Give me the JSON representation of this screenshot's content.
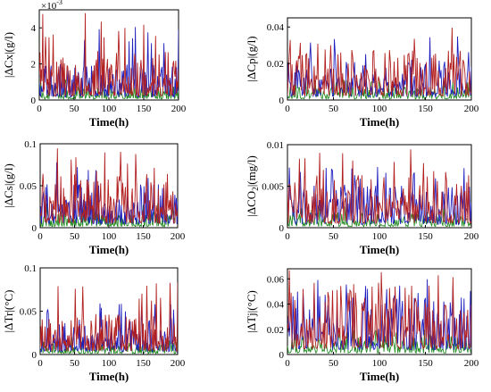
{
  "colors": {
    "series_a": "#1f1fbf",
    "series_b": "#b22020",
    "series_c": "#228b22",
    "axes": "#000000"
  },
  "chart_data": [
    {
      "type": "line",
      "xlabel": "Time(h)",
      "ylabel": "|ΔCx|(g/l)",
      "exponent_label": "×10",
      "exponent_power": "-3",
      "xlim": [
        0,
        200
      ],
      "ylim": [
        0,
        5
      ],
      "xticks": [
        "0",
        "50",
        "100",
        "150",
        "200"
      ],
      "yticks": [
        "0",
        "2",
        "4"
      ],
      "ytick_values": [
        0,
        2,
        4
      ],
      "series_count": 3,
      "points": 200,
      "levels": [
        1.1,
        1.5,
        0.4
      ],
      "peaks": [
        4.1,
        4.9,
        1.2
      ]
    },
    {
      "type": "line",
      "xlabel": "Time(h)",
      "ylabel": "|ΔCp|(g/l)",
      "xlim": [
        0,
        200
      ],
      "ylim": [
        0,
        0.045
      ],
      "xticks": [
        "0",
        "50",
        "100",
        "150",
        "200"
      ],
      "yticks": [
        "0",
        "0.02",
        "0.04"
      ],
      "ytick_values": [
        0,
        0.02,
        0.04
      ],
      "series_count": 3,
      "points": 200,
      "levels": [
        0.012,
        0.015,
        0.004
      ],
      "peaks": [
        0.035,
        0.042,
        0.012
      ]
    },
    {
      "type": "line",
      "xlabel": "Time(h)",
      "ylabel": "|ΔCs|(g/l)",
      "xlim": [
        0,
        200
      ],
      "ylim": [
        0,
        0.1
      ],
      "xticks": [
        "0",
        "50",
        "100",
        "150",
        "200"
      ],
      "yticks": [
        "0",
        "0.05",
        "0.1"
      ],
      "ytick_values": [
        0,
        0.05,
        0.1
      ],
      "series_count": 3,
      "points": 200,
      "levels": [
        0.028,
        0.035,
        0.01
      ],
      "peaks": [
        0.08,
        0.095,
        0.03
      ]
    },
    {
      "type": "line",
      "xlabel": "Time(h)",
      "ylabel": "|ΔCO",
      "ylabel_sub": "2",
      "ylabel_tail": "|(mg/l)",
      "xlim": [
        0,
        200
      ],
      "ylim": [
        0,
        0.01
      ],
      "xticks": [
        "0",
        "50",
        "100",
        "150",
        "200"
      ],
      "yticks": [
        "0",
        "0.005",
        "0.01"
      ],
      "ytick_values": [
        0,
        0.005,
        0.01
      ],
      "series_count": 3,
      "points": 200,
      "levels": [
        0.0028,
        0.0035,
        0.001
      ],
      "peaks": [
        0.008,
        0.0095,
        0.003
      ]
    },
    {
      "type": "line",
      "xlabel": "Time(h)",
      "ylabel": "|ΔTr|(°C)",
      "xlim": [
        0,
        200
      ],
      "ylim": [
        0,
        0.1
      ],
      "xticks": [
        "0",
        "50",
        "100",
        "150",
        "200"
      ],
      "yticks": [
        "0",
        "0.05",
        "0.1"
      ],
      "ytick_values": [
        0,
        0.05,
        0.1
      ],
      "series_count": 3,
      "points": 200,
      "levels": [
        0.022,
        0.026,
        0.008
      ],
      "peaks": [
        0.065,
        0.083,
        0.02
      ]
    },
    {
      "type": "line",
      "xlabel": "Time(h)",
      "ylabel": "|ΔTj|(°C)",
      "xlim": [
        0,
        200
      ],
      "ylim": [
        0,
        0.068
      ],
      "xticks": [
        "0",
        "50",
        "100",
        "150",
        "200"
      ],
      "yticks": [
        "0",
        "0.02",
        "0.04",
        "0.06"
      ],
      "ytick_values": [
        0,
        0.02,
        0.04,
        0.06
      ],
      "series_count": 3,
      "points": 200,
      "levels": [
        0.025,
        0.03,
        0.008
      ],
      "peaks": [
        0.06,
        0.068,
        0.02
      ]
    }
  ]
}
